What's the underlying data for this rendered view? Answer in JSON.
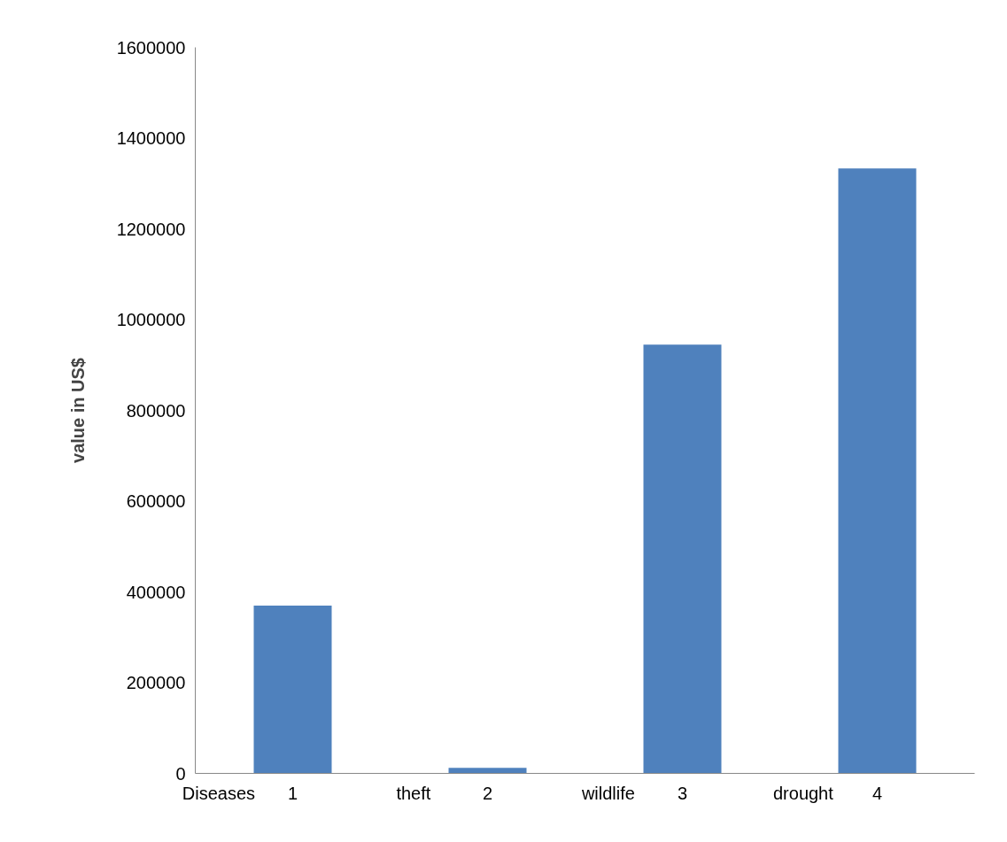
{
  "chart_data": {
    "type": "bar",
    "ylabel": "value in US$",
    "categories": [
      "1",
      "2",
      "3",
      "4"
    ],
    "values": [
      370000,
      12000,
      945000,
      1333000
    ],
    "color": "#4f81bd",
    "ylim": [
      0,
      1600000
    ],
    "yticks": [
      0,
      200000,
      400000,
      600000,
      800000,
      1000000,
      1200000,
      1400000,
      1600000
    ],
    "annotations": [
      "Diseases",
      "theft",
      "wildlife",
      "drought"
    ],
    "grid": false
  }
}
